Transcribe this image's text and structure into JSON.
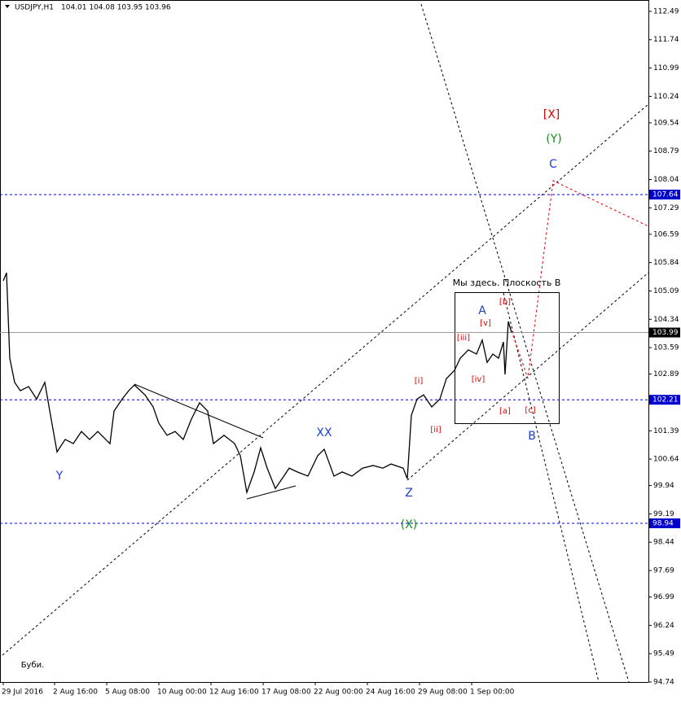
{
  "chart_data": {
    "type": "line",
    "title": "USDJPY,H1",
    "subtitle": "104.01 104.08 103.95 103.96",
    "xlim": [
      0,
      796
    ],
    "ylim": [
      94.74,
      112.79
    ],
    "xticks": [
      {
        "value": 4,
        "label": "29 Jul 2016"
      },
      {
        "value": 67,
        "label": "2 Aug 16:00"
      },
      {
        "value": 131,
        "label": "5 Aug 08:00"
      },
      {
        "value": 195,
        "label": "10 Aug 00:00"
      },
      {
        "value": 259,
        "label": "12 Aug 16:00"
      },
      {
        "value": 323,
        "label": "17 Aug 08:00"
      },
      {
        "value": 387,
        "label": "22 Aug 00:00"
      },
      {
        "value": 451,
        "label": "24 Aug 16:00"
      },
      {
        "value": 515,
        "label": "29 Aug 08:00"
      },
      {
        "value": 579,
        "label": "1 Sep 00:00"
      }
    ],
    "yticks": [
      112.49,
      111.74,
      110.99,
      110.24,
      109.54,
      108.79,
      108.04,
      107.29,
      106.59,
      105.84,
      105.09,
      104.34,
      103.59,
      102.89,
      102.14,
      101.39,
      100.64,
      99.94,
      99.19,
      98.44,
      97.69,
      96.99,
      96.24,
      95.49,
      94.74
    ],
    "series": [
      {
        "name": "USDJPY",
        "color": "#000000",
        "x": [
          4,
          8,
          12,
          18,
          25,
          35,
          45,
          55,
          62,
          70,
          80,
          90,
          100,
          110,
          120,
          135,
          140,
          150,
          158,
          165,
          178,
          188,
          195,
          205,
          215,
          225,
          235,
          245,
          255,
          262,
          275,
          288,
          295,
          303,
          312,
          320,
          328,
          338,
          345,
          355,
          365,
          378,
          390,
          398,
          410,
          420,
          432,
          445,
          458,
          470,
          480,
          495,
          500,
          505,
          512,
          520,
          530,
          540,
          548,
          558,
          565,
          575,
          585,
          592,
          598,
          605,
          612,
          618,
          620,
          624,
          628
        ],
        "values": [
          105.36,
          105.57,
          103.31,
          102.67,
          102.45,
          102.56,
          102.23,
          102.67,
          101.8,
          100.83,
          101.16,
          101.05,
          101.37,
          101.16,
          101.37,
          101.05,
          101.91,
          102.23,
          102.45,
          102.6,
          102.34,
          102.02,
          101.59,
          101.27,
          101.37,
          101.16,
          101.7,
          102.13,
          101.91,
          101.05,
          101.27,
          101.05,
          100.73,
          99.76,
          100.3,
          100.94,
          100.4,
          99.86,
          100.08,
          100.4,
          100.3,
          100.19,
          100.73,
          100.9,
          100.19,
          100.3,
          100.19,
          100.4,
          100.47,
          100.4,
          100.51,
          100.4,
          100.12,
          101.8,
          102.23,
          102.34,
          102.02,
          102.23,
          102.77,
          102.99,
          103.31,
          103.53,
          103.42,
          103.79,
          103.2,
          103.42,
          103.31,
          103.74,
          102.88,
          104.28,
          103.99
        ]
      }
    ],
    "levels": [
      {
        "value": 107.64,
        "label": "107.64",
        "color": "#0000cc"
      },
      {
        "value": 103.99,
        "label": "103.99",
        "color": "#000000"
      },
      {
        "value": 102.21,
        "label": "102.21",
        "color": "#0000cc"
      },
      {
        "value": 98.94,
        "label": "98.94",
        "color": "#0000cc"
      }
    ],
    "annotations": [
      {
        "text": "[X]",
        "color": "#e00000"
      },
      {
        "text": "(Y)",
        "color": "#159015"
      },
      {
        "text": "C",
        "color": "#1c3fd0"
      },
      {
        "text": "Мы здесь. Плоскость В",
        "color": "#000000"
      },
      {
        "text": "[b]",
        "color": "#e00000"
      },
      {
        "text": "A",
        "color": "#1c3fd0"
      },
      {
        "text": "[v]",
        "color": "#e00000"
      },
      {
        "text": "[iii]",
        "color": "#e00000"
      },
      {
        "text": "[i]",
        "color": "#e00000"
      },
      {
        "text": "[iv]",
        "color": "#e00000"
      },
      {
        "text": "[a]",
        "color": "#e00000"
      },
      {
        "text": "[c]",
        "color": "#e00000"
      },
      {
        "text": "[ii]",
        "color": "#e00000"
      },
      {
        "text": "B",
        "color": "#1c3fd0"
      },
      {
        "text": "XX",
        "color": "#1c3fd0"
      },
      {
        "text": "Y",
        "color": "#1c3fd0"
      },
      {
        "text": "Z",
        "color": "#1c3fd0"
      },
      {
        "text": "(X)",
        "color": "#159015"
      },
      {
        "text": "Буби.",
        "color": "#000000"
      }
    ]
  }
}
